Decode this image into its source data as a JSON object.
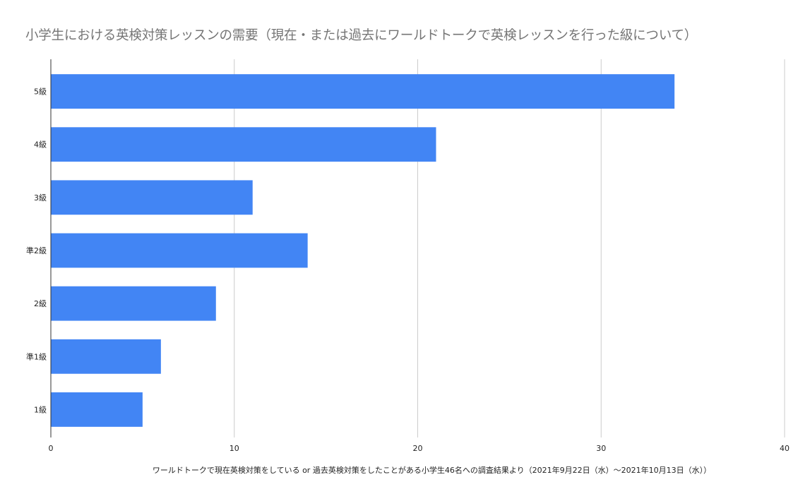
{
  "chart_data": {
    "type": "bar",
    "orientation": "horizontal",
    "title": "小学生における英検対策レッスンの需要（現在・または過去にワールドトークで英検レッスンを行った級について）",
    "xlabel": "ワールドトークで現在英検対策をしている or 過去英検対策をしたことがある小学生46名への調査結果より（2021年9月22日（水）〜2021年10月13日（水））",
    "ylabel": "",
    "categories": [
      "5級",
      "4級",
      "3級",
      "準2級",
      "2級",
      "準1級",
      "1級"
    ],
    "values": [
      34,
      21,
      11,
      14,
      9,
      6,
      5
    ],
    "xlim": [
      0,
      40
    ],
    "xticks": [
      0,
      10,
      20,
      30,
      40
    ],
    "grid": true,
    "legend": "none",
    "colors": {
      "bar": "#4285f4",
      "title": "#757575"
    }
  }
}
